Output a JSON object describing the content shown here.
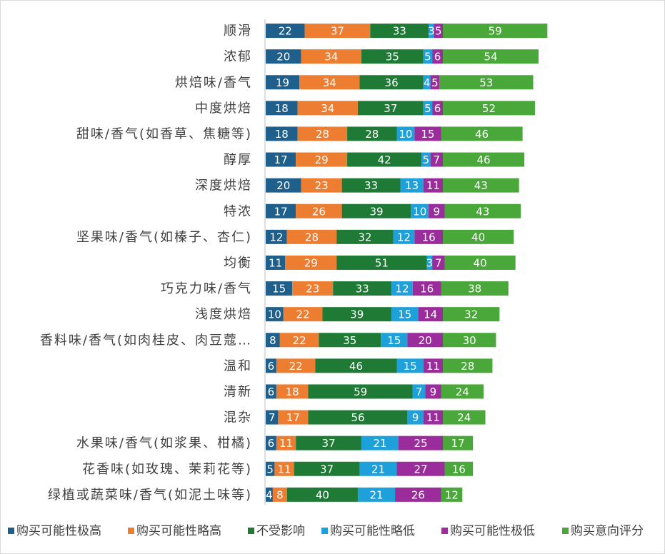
{
  "chart_data": {
    "type": "bar",
    "orientation": "horizontal",
    "stacked": true,
    "categories": [
      "顺滑",
      "浓郁",
      "烘焙味/香气",
      "中度烘焙",
      "甜味/香气(如香草、焦糖等)",
      "醇厚",
      "深度烘焙",
      "特浓",
      "坚果味/香气(如榛子、杏仁)",
      "均衡",
      "巧克力味/香气",
      "浅度烘焙",
      "香料味/香气(如肉桂皮、肉豆蔻…",
      "温和",
      "清新",
      "混杂",
      "水果味/香气(如浆果、柑橘)",
      "花香味(如玫瑰、茉莉花等)",
      "绿植或蔬菜味/香气(如泥土味等)"
    ],
    "series": [
      {
        "name": "购买可能性极高",
        "color": "#1f5f8b",
        "label_color": "#ffffff",
        "values": [
          22,
          20,
          19,
          18,
          18,
          17,
          20,
          17,
          12,
          11,
          15,
          10,
          8,
          6,
          6,
          7,
          6,
          5,
          4
        ]
      },
      {
        "name": "购买可能性略高",
        "color": "#ed7d31",
        "label_color": "#ffffff",
        "values": [
          37,
          34,
          34,
          34,
          28,
          29,
          23,
          26,
          28,
          29,
          23,
          22,
          22,
          22,
          18,
          17,
          11,
          11,
          8
        ]
      },
      {
        "name": "不受影响",
        "color": "#1f7a36",
        "label_color": "#ffffff",
        "values": [
          33,
          35,
          36,
          37,
          28,
          42,
          33,
          39,
          32,
          51,
          33,
          39,
          35,
          46,
          59,
          56,
          37,
          37,
          40
        ]
      },
      {
        "name": "购买可能性略低",
        "color": "#1ea0da",
        "label_color": "#ffffff",
        "values": [
          3,
          5,
          4,
          5,
          10,
          5,
          13,
          10,
          12,
          3,
          12,
          15,
          15,
          15,
          7,
          9,
          21,
          21,
          21
        ]
      },
      {
        "name": "购买可能性极低",
        "color": "#9b2c9b",
        "label_color": "#ffffff",
        "values": [
          5,
          6,
          5,
          6,
          15,
          7,
          11,
          9,
          16,
          7,
          16,
          14,
          20,
          11,
          9,
          11,
          25,
          27,
          26
        ]
      },
      {
        "name": "购买意向评分",
        "color": "#4aa83a",
        "label_color": "#ffffff",
        "values": [
          59,
          54,
          53,
          52,
          46,
          46,
          43,
          43,
          40,
          40,
          38,
          32,
          30,
          28,
          24,
          24,
          17,
          16,
          12
        ]
      }
    ],
    "legend_position": "bottom",
    "grid": false
  }
}
